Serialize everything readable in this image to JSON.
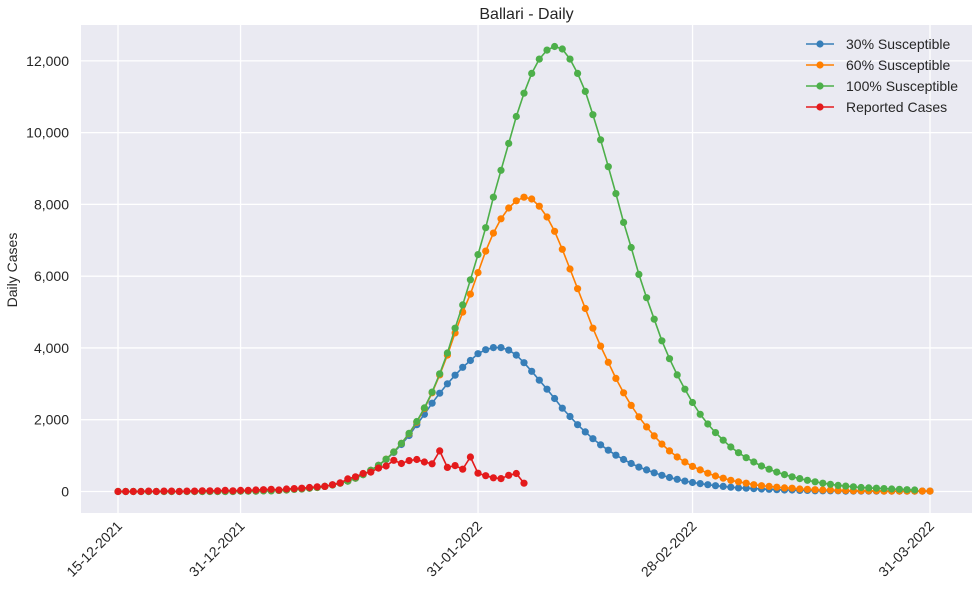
{
  "chart_data": {
    "type": "line",
    "title": "Ballari - Daily",
    "xlabel": "",
    "ylabel": "Daily Cases",
    "x_start": "2021-12-15",
    "x_end": "2022-03-31",
    "xlim": [
      "2021-12-15",
      "2022-03-31"
    ],
    "ylim": [
      -600,
      13000
    ],
    "yticks": [
      0,
      2000,
      4000,
      6000,
      8000,
      10000,
      12000
    ],
    "ytick_labels": [
      "0",
      "2,000",
      "4,000",
      "6,000",
      "8,000",
      "10,000",
      "12,000"
    ],
    "xticks": [
      "2021-12-15",
      "2021-12-31",
      "2022-01-31",
      "2022-02-28",
      "2022-03-31"
    ],
    "xtick_labels": [
      "15-12-2021",
      "31-12-2021",
      "31-01-2022",
      "28-02-2022",
      "31-03-2022"
    ],
    "grid": true,
    "legend_position": "top-right",
    "series": [
      {
        "name": "30% Susceptible",
        "color": "#377eb8",
        "values": [
          0,
          0,
          0,
          0,
          0,
          0,
          0,
          0,
          0,
          0,
          0,
          0,
          0,
          0,
          0,
          0,
          10,
          10,
          10,
          20,
          20,
          30,
          40,
          60,
          70,
          90,
          110,
          140,
          180,
          230,
          290,
          370,
          470,
          590,
          730,
          890,
          1090,
          1310,
          1560,
          1860,
          2150,
          2460,
          2740,
          3000,
          3240,
          3460,
          3650,
          3840,
          3950,
          4010,
          4010,
          3940,
          3800,
          3590,
          3350,
          3100,
          2850,
          2590,
          2320,
          2090,
          1860,
          1660,
          1470,
          1300,
          1150,
          1010,
          890,
          780,
          680,
          600,
          520,
          450,
          390,
          340,
          290,
          250,
          220,
          190,
          160,
          140,
          120,
          100,
          90,
          80,
          70,
          60,
          50,
          40,
          40,
          30,
          30,
          20,
          20,
          20,
          20,
          10,
          10,
          10,
          10,
          10,
          10,
          10,
          10,
          10,
          10,
          10,
          10
        ]
      },
      {
        "name": "60% Susceptible",
        "color": "#ff7f00",
        "values": [
          0,
          0,
          0,
          0,
          0,
          0,
          0,
          0,
          0,
          0,
          0,
          0,
          0,
          0,
          0,
          0,
          10,
          10,
          10,
          20,
          20,
          30,
          40,
          60,
          70,
          90,
          110,
          140,
          180,
          230,
          290,
          370,
          470,
          590,
          730,
          900,
          1100,
          1340,
          1610,
          1930,
          2310,
          2750,
          3250,
          3800,
          4420,
          5000,
          5500,
          6100,
          6700,
          7200,
          7600,
          7900,
          8100,
          8200,
          8150,
          7950,
          7650,
          7250,
          6750,
          6200,
          5650,
          5100,
          4550,
          4050,
          3600,
          3150,
          2750,
          2400,
          2080,
          1800,
          1550,
          1320,
          1130,
          960,
          820,
          700,
          600,
          510,
          430,
          370,
          310,
          270,
          230,
          190,
          160,
          140,
          120,
          100,
          90,
          70,
          60,
          50,
          40,
          40,
          30,
          30,
          20,
          20,
          20,
          20,
          10,
          10,
          10,
          10,
          10,
          10,
          10
        ]
      },
      {
        "name": "100% Susceptible",
        "color": "#4daf4a",
        "values": [
          0,
          0,
          0,
          0,
          0,
          0,
          0,
          0,
          0,
          0,
          0,
          0,
          0,
          0,
          0,
          0,
          10,
          10,
          10,
          20,
          20,
          30,
          40,
          60,
          70,
          90,
          110,
          140,
          180,
          230,
          290,
          370,
          470,
          590,
          730,
          900,
          1100,
          1340,
          1620,
          1950,
          2330,
          2770,
          3280,
          3860,
          4550,
          5200,
          5900,
          6600,
          7350,
          8200,
          8950,
          9700,
          10450,
          11100,
          11650,
          12050,
          12300,
          12400,
          12330,
          12050,
          11650,
          11150,
          10500,
          9800,
          9050,
          8300,
          7500,
          6800,
          6050,
          5400,
          4800,
          4200,
          3700,
          3250,
          2850,
          2480,
          2150,
          1880,
          1640,
          1430,
          1240,
          1080,
          940,
          820,
          710,
          620,
          540,
          470,
          410,
          360,
          310,
          270,
          230,
          200,
          170,
          150,
          130,
          110,
          100,
          90,
          80,
          70,
          60,
          50,
          40
        ]
      },
      {
        "name": "Reported Cases",
        "color": "#e41a1c",
        "values": [
          0,
          0,
          0,
          0,
          10,
          0,
          10,
          10,
          0,
          10,
          10,
          20,
          20,
          20,
          30,
          20,
          30,
          30,
          40,
          50,
          60,
          40,
          70,
          80,
          90,
          110,
          130,
          140,
          190,
          240,
          350,
          410,
          500,
          540,
          650,
          710,
          870,
          780,
          860,
          890,
          820,
          770,
          1130,
          670,
          720,
          620,
          960,
          510,
          440,
          380,
          360,
          450,
          500,
          230
        ]
      }
    ]
  }
}
